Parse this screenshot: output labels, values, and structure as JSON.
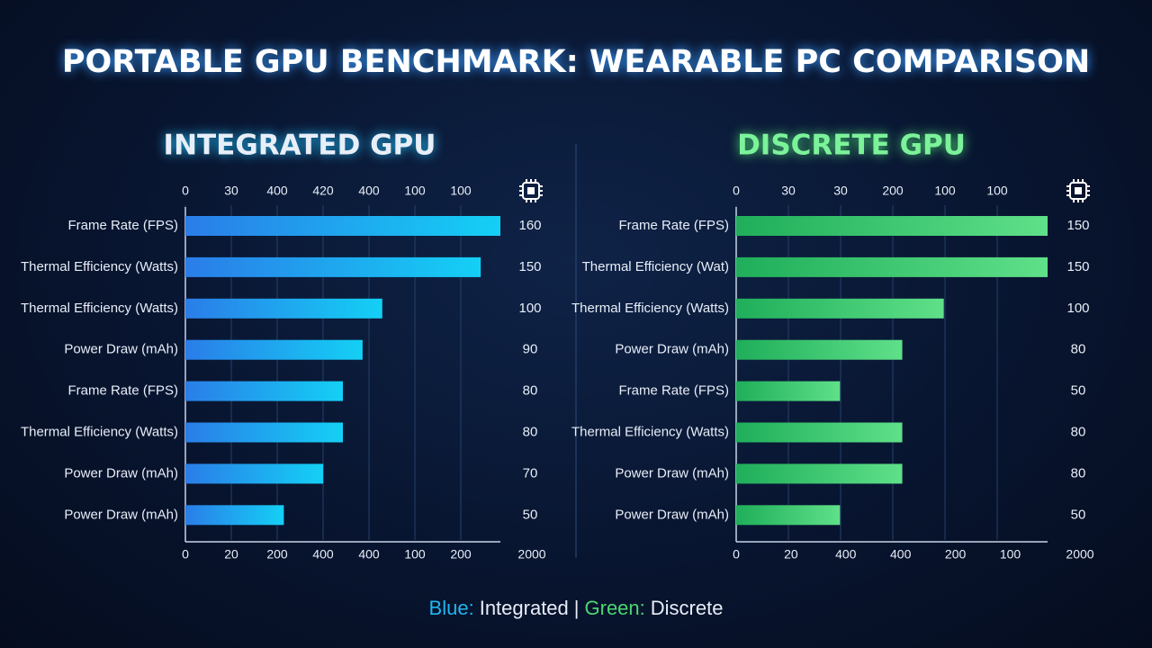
{
  "title": "PORTABLE GPU BENCHMARK: WEARABLE PC COMPARISON",
  "panels": [
    {
      "heading": "INTEGRATED GPU",
      "color": "#1fb6f0",
      "top_labels": [
        "0",
        "30",
        "400",
        "420",
        "400",
        "100",
        "100"
      ],
      "bottom_labels": [
        "0",
        "20",
        "200",
        "400",
        "400",
        "100",
        "200",
        "2000"
      ],
      "rows": [
        {
          "label": "Frame Rate (FPS)",
          "value": 160
        },
        {
          "label": "Thermal Efficiency (Watts)",
          "value": 150
        },
        {
          "label": "Thermal Efficiency (Watts)",
          "value": 100
        },
        {
          "label": "Power Draw (mAh)",
          "value": 90
        },
        {
          "label": "Frame Rate (FPS)",
          "value": 80
        },
        {
          "label": "Thermal Efficiency (Watts)",
          "value": 80
        },
        {
          "label": "Power Draw (mAh)",
          "value": 70
        },
        {
          "label": "Power Draw (mAh)",
          "value": 50
        }
      ]
    },
    {
      "heading": "DISCRETE GPU",
      "color": "#4cd672",
      "top_labels": [
        "0",
        "30",
        "30",
        "200",
        "100",
        "100"
      ],
      "bottom_labels": [
        "0",
        "20",
        "400",
        "400",
        "200",
        "100",
        "2000"
      ],
      "rows": [
        {
          "label": "Frame Rate (FPS)",
          "value": 150
        },
        {
          "label": "Thermal Efficiency (Wat)",
          "value": 150
        },
        {
          "label": "Thermal Efficiency (Watts)",
          "value": 100
        },
        {
          "label": "Power Draw (mAh)",
          "value": 80
        },
        {
          "label": "Frame Rate (FPS)",
          "value": 50
        },
        {
          "label": "Thermal Efficiency (Watts)",
          "value": 80
        },
        {
          "label": "Power Draw (mAh)",
          "value": 80
        },
        {
          "label": "Power Draw (mAh)",
          "value": 50
        }
      ]
    }
  ],
  "legend": [
    {
      "key": "Blue:",
      "text": "Integrated"
    },
    {
      "key": "Green:",
      "text": "Discrete"
    }
  ],
  "legend_separator": "|"
}
